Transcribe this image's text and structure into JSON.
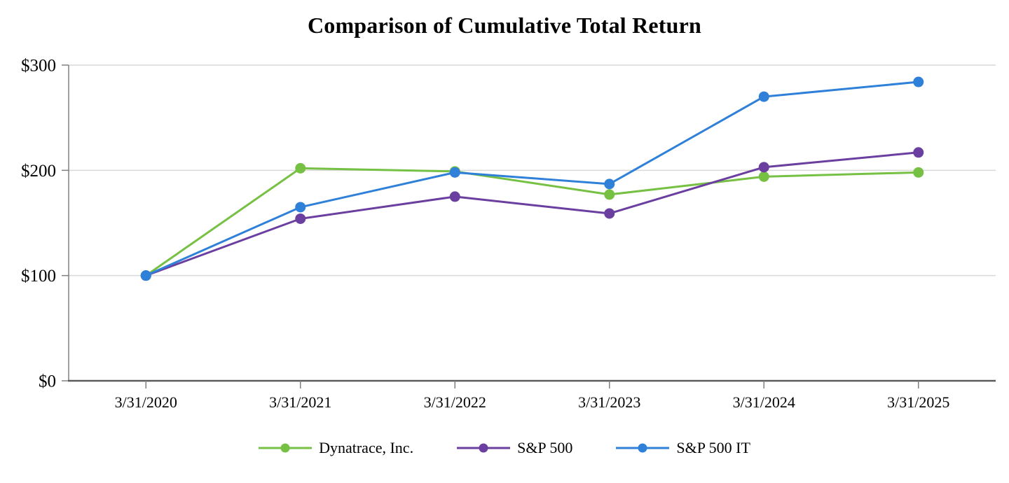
{
  "chart_data": {
    "type": "line",
    "title": "Comparison of Cumulative Total Return",
    "categories": [
      "3/31/2020",
      "3/31/2021",
      "3/31/2022",
      "3/31/2023",
      "3/31/2024",
      "3/31/2025"
    ],
    "series": [
      {
        "name": "Dynatrace, Inc.",
        "color": "#76C043",
        "values": [
          100,
          202,
          199,
          177,
          194,
          198
        ]
      },
      {
        "name": "S&P 500",
        "color": "#6B3FA0",
        "values": [
          100,
          154,
          175,
          159,
          203,
          217
        ]
      },
      {
        "name": "S&P 500 IT",
        "color": "#2F80D8",
        "values": [
          100,
          165,
          198,
          187,
          270,
          284
        ]
      }
    ],
    "y_ticks": [
      {
        "label": "$0",
        "value": 0
      },
      {
        "label": "$100",
        "value": 100
      },
      {
        "label": "$200",
        "value": 200
      },
      {
        "label": "$300",
        "value": 300
      }
    ],
    "ylim": [
      0,
      300
    ],
    "xlabel": "",
    "ylabel": "",
    "grid": "horizontal",
    "legend_position": "bottom",
    "marker": "circle",
    "colors": {
      "gridline": "#D9D9D9",
      "y_axis": "#808080",
      "x_axis": "#5A5A5A",
      "tick": "#808080",
      "text": "#000000",
      "background": "#FFFFFF"
    }
  }
}
